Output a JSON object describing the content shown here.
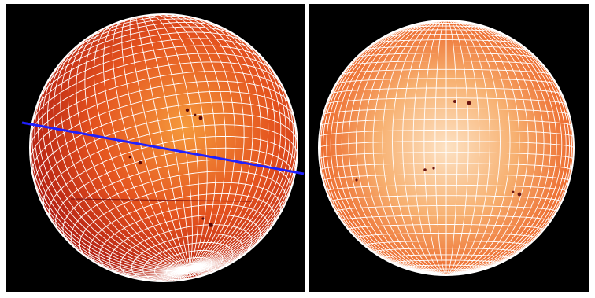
{
  "figure": {
    "background_color": "#000000",
    "frame_color": "#ffffff",
    "grid_color": "#ffffff",
    "marker_line_color": "#2020ff",
    "panels": [
      {
        "id": "left",
        "rim_color": "#b01c12",
        "mid_color": "#e4521e",
        "center_color": "#f59a3c",
        "marker_line": true
      },
      {
        "id": "right",
        "rim_color": "#ea5a1e",
        "mid_color": "#f7923c",
        "center_color": "#fde2c4",
        "marker_line": false
      }
    ]
  }
}
